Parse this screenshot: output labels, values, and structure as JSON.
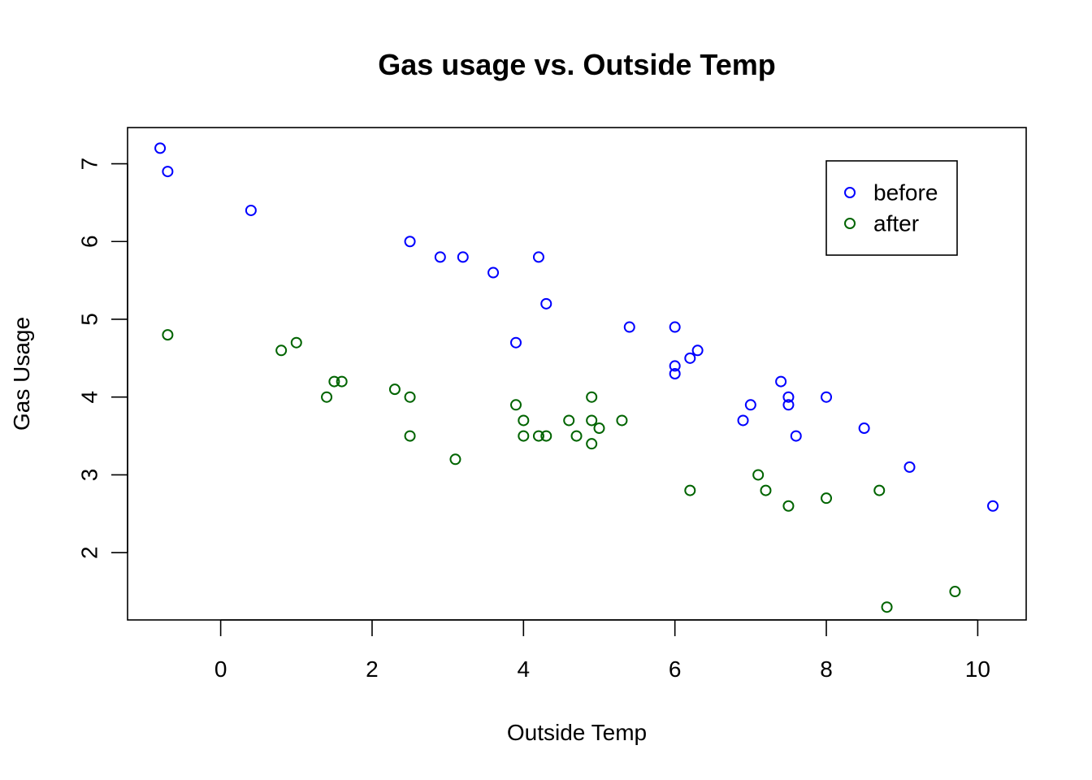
{
  "chart_data": {
    "type": "scatter",
    "title": "Gas usage vs. Outside Temp",
    "xlabel": "Outside Temp",
    "ylabel": "Gas Usage",
    "xlim": [
      -1.23,
      10.64
    ],
    "ylim": [
      1.135,
      7.465
    ],
    "x_ticks": [
      0,
      2,
      4,
      6,
      8,
      10
    ],
    "y_ticks": [
      2,
      3,
      4,
      5,
      6,
      7
    ],
    "grid": false,
    "legend_position": "top-right",
    "series": [
      {
        "name": "before",
        "color": "#0000ff",
        "marker": "open-circle",
        "points": [
          [
            -0.8,
            7.2
          ],
          [
            -0.7,
            6.9
          ],
          [
            0.4,
            6.4
          ],
          [
            2.5,
            6.0
          ],
          [
            2.9,
            5.8
          ],
          [
            3.2,
            5.8
          ],
          [
            3.6,
            5.6
          ],
          [
            4.2,
            5.8
          ],
          [
            4.3,
            5.2
          ],
          [
            3.9,
            4.7
          ],
          [
            5.4,
            4.9
          ],
          [
            6.0,
            4.9
          ],
          [
            6.0,
            4.4
          ],
          [
            6.0,
            4.3
          ],
          [
            6.2,
            4.5
          ],
          [
            6.3,
            4.6
          ],
          [
            7.4,
            4.2
          ],
          [
            7.5,
            4.0
          ],
          [
            7.5,
            3.9
          ],
          [
            7.0,
            3.9
          ],
          [
            6.9,
            3.7
          ],
          [
            7.6,
            3.5
          ],
          [
            8.0,
            4.0
          ],
          [
            8.5,
            3.6
          ],
          [
            9.1,
            3.1
          ],
          [
            10.2,
            2.6
          ]
        ]
      },
      {
        "name": "after",
        "color": "#006400",
        "marker": "open-circle",
        "points": [
          [
            -0.7,
            4.8
          ],
          [
            0.8,
            4.6
          ],
          [
            1.0,
            4.7
          ],
          [
            1.4,
            4.0
          ],
          [
            1.5,
            4.2
          ],
          [
            1.6,
            4.2
          ],
          [
            2.3,
            4.1
          ],
          [
            2.5,
            4.0
          ],
          [
            2.5,
            3.5
          ],
          [
            3.1,
            3.2
          ],
          [
            3.9,
            3.9
          ],
          [
            4.0,
            3.7
          ],
          [
            4.0,
            3.5
          ],
          [
            4.2,
            3.5
          ],
          [
            4.3,
            3.5
          ],
          [
            4.6,
            3.7
          ],
          [
            4.7,
            3.5
          ],
          [
            4.9,
            4.0
          ],
          [
            4.9,
            3.7
          ],
          [
            4.9,
            3.4
          ],
          [
            5.0,
            3.6
          ],
          [
            5.3,
            3.7
          ],
          [
            6.2,
            2.8
          ],
          [
            7.1,
            3.0
          ],
          [
            7.2,
            2.8
          ],
          [
            7.5,
            2.6
          ],
          [
            8.0,
            2.7
          ],
          [
            8.7,
            2.8
          ],
          [
            8.8,
            1.3
          ],
          [
            9.7,
            1.5
          ]
        ]
      }
    ]
  }
}
